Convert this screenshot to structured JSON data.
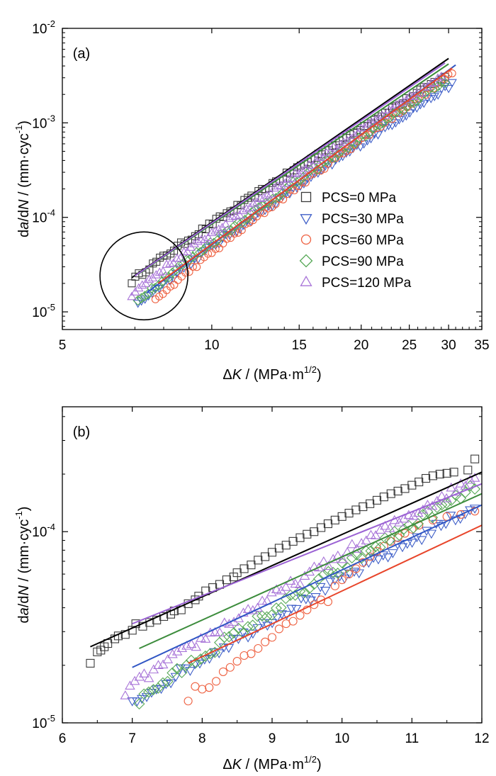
{
  "figure": {
    "panels": [
      "(a)",
      "(b)"
    ]
  },
  "chart_data": [
    {
      "type": "scatter",
      "panel_label": "(a)",
      "xlabel": {
        "prefix": "Δ",
        "var": "K",
        "mid": " / (MPa·m",
        "sup": "1/2",
        "suffix": ")"
      },
      "ylabel": {
        "pre": "d",
        "a": "a",
        "mid": "/d",
        "N": "N",
        "unit": " / (mm·cyc",
        "sup": "-1",
        "suffix": ")"
      },
      "xscale": "log",
      "yscale": "log",
      "xlim": [
        5,
        35
      ],
      "ylim": [
        6.5e-06,
        0.01
      ],
      "xticks": [
        5,
        10,
        15,
        20,
        25,
        30,
        35
      ],
      "xtick_labels": [
        "5",
        "10",
        "15",
        "20",
        "25",
        "30",
        "35"
      ],
      "yticks": [
        1e-05,
        0.0001,
        0.001,
        0.01
      ],
      "ytick_labels": [
        {
          "base": "10",
          "exp": "-5"
        },
        {
          "base": "10",
          "exp": "-4"
        },
        {
          "base": "10",
          "exp": "-3"
        },
        {
          "base": "10",
          "exp": "-2"
        }
      ],
      "legend": {
        "position": "center-right"
      },
      "annotation": {
        "shape": "circle",
        "center": [
          7.3,
          2.4e-05
        ]
      },
      "series": [
        {
          "name": "PCS=0 MPa",
          "marker": "square",
          "color": "#3a3a3a",
          "line_color": "#000000",
          "fit": {
            "x": [
              6.9,
              30.0
            ],
            "y": [
              2.3e-05,
              0.0048
            ]
          },
          "points": {
            "x_start": 6.9,
            "x_end": 29.5,
            "n": 90,
            "y_start": 2.1e-05,
            "y_end": 0.0031
          }
        },
        {
          "name": "PCS=30 MPa",
          "marker": "triangle-down",
          "color": "#3f5fc8",
          "line_color": "#2f55c4",
          "fit": {
            "x": [
              7.4,
              31.0
            ],
            "y": [
              1.6e-05,
              0.0041
            ]
          },
          "points": {
            "x_start": 7.1,
            "x_end": 30.5,
            "n": 90,
            "y_start": 1.2e-05,
            "y_end": 0.0026
          }
        },
        {
          "name": "PCS=60 MPa",
          "marker": "circle",
          "color": "#ee6040",
          "line_color": "#e8452a",
          "fit": {
            "x": [
              7.8,
              30.5
            ],
            "y": [
              2e-05,
              0.0038
            ]
          },
          "points": {
            "x_start": 7.7,
            "x_end": 30.5,
            "n": 80,
            "y_start": 1.3e-05,
            "y_end": 0.0033
          }
        },
        {
          "name": "PCS=90 MPa",
          "marker": "diamond",
          "color": "#56a856",
          "line_color": "#3c8c3c",
          "fit": {
            "x": [
              7.1,
              30.0
            ],
            "y": [
              2.5e-05,
              0.0042
            ]
          },
          "points": {
            "x_start": 7.1,
            "x_end": 29.5,
            "n": 90,
            "y_start": 1.3e-05,
            "y_end": 0.0028
          }
        },
        {
          "name": "PCS=120 MPa",
          "marker": "triangle-up",
          "color": "#a874d8",
          "line_color": "#9b62d4",
          "fit": {
            "x": [
              7.0,
              29.5
            ],
            "y": [
              2.4e-05,
              0.0043
            ]
          },
          "points": {
            "x_start": 6.9,
            "x_end": 29.0,
            "n": 90,
            "y_start": 1.5e-05,
            "y_end": 0.003
          }
        }
      ]
    },
    {
      "type": "scatter",
      "panel_label": "(b)",
      "xlabel": {
        "prefix": "Δ",
        "var": "K",
        "mid": " / (MPa·m",
        "sup": "1/2",
        "suffix": ")"
      },
      "ylabel": {
        "pre": "d",
        "a": "a",
        "mid": "/d",
        "N": "N",
        "unit": " / (mm·cyc",
        "sup": "-1",
        "suffix": ")"
      },
      "xscale": "linear",
      "yscale": "log",
      "xlim": [
        6,
        12
      ],
      "ylim": [
        1e-05,
        0.00045
      ],
      "xticks": [
        6,
        7,
        8,
        9,
        10,
        11,
        12
      ],
      "xtick_labels": [
        "6",
        "7",
        "8",
        "9",
        "10",
        "11",
        "12"
      ],
      "yticks": [
        1e-05,
        0.0001
      ],
      "ytick_labels": [
        {
          "base": "10",
          "exp": "-5"
        },
        {
          "base": "10",
          "exp": "-4"
        }
      ],
      "series": [
        {
          "name": "PCS=0 MPa",
          "marker": "square",
          "color": "#3a3a3a",
          "line_color": "#000000",
          "fit": {
            "x": [
              6.4,
              12.0
            ],
            "y": [
              2.5e-05,
              0.000205
            ]
          },
          "points": [
            [
              6.4,
              2.05e-05
            ],
            [
              6.5,
              2.35e-05
            ],
            [
              6.55,
              2.4e-05
            ],
            [
              6.6,
              2.5e-05
            ],
            [
              6.65,
              2.6e-05
            ],
            [
              6.75,
              2.75e-05
            ],
            [
              6.8,
              2.85e-05
            ],
            [
              6.9,
              2.9e-05
            ],
            [
              7.0,
              3.05e-05
            ],
            [
              7.05,
              3.3e-05
            ],
            [
              7.15,
              3.2e-05
            ],
            [
              7.25,
              3.35e-05
            ],
            [
              7.35,
              3.45e-05
            ],
            [
              7.45,
              3.6e-05
            ],
            [
              7.55,
              3.7e-05
            ],
            [
              7.6,
              3.85e-05
            ],
            [
              7.7,
              3.9e-05
            ],
            [
              7.8,
              4.2e-05
            ],
            [
              7.9,
              4.4e-05
            ],
            [
              7.95,
              4.6e-05
            ],
            [
              8.05,
              4.9e-05
            ],
            [
              8.15,
              5.1e-05
            ],
            [
              8.25,
              5.3e-05
            ],
            [
              8.35,
              5.6e-05
            ],
            [
              8.45,
              5.8e-05
            ],
            [
              8.5,
              6.1e-05
            ],
            [
              8.6,
              6.4e-05
            ],
            [
              8.7,
              6.7e-05
            ],
            [
              8.8,
              7.1e-05
            ],
            [
              8.9,
              7.4e-05
            ],
            [
              9.0,
              7.8e-05
            ],
            [
              9.1,
              8.2e-05
            ],
            [
              9.2,
              8.5e-05
            ],
            [
              9.3,
              8.9e-05
            ],
            [
              9.4,
              9.3e-05
            ],
            [
              9.5,
              9.7e-05
            ],
            [
              9.6,
              0.0001
            ],
            [
              9.7,
              0.000105
            ],
            [
              9.8,
              0.00011
            ],
            [
              9.9,
              0.000115
            ],
            [
              10.0,
              0.00012
            ],
            [
              10.1,
              0.000125
            ],
            [
              10.2,
              0.00013
            ],
            [
              10.3,
              0.000135
            ],
            [
              10.4,
              0.00014
            ],
            [
              10.5,
              0.000146
            ],
            [
              10.6,
              0.000152
            ],
            [
              10.7,
              0.000158
            ],
            [
              10.8,
              0.000163
            ],
            [
              10.9,
              0.000168
            ],
            [
              11.0,
              0.000175
            ],
            [
              11.1,
              0.000182
            ],
            [
              11.2,
              0.00019
            ],
            [
              11.3,
              0.000196
            ],
            [
              11.4,
              0.0002
            ],
            [
              11.5,
              0.000202
            ],
            [
              11.6,
              0.000205
            ],
            [
              11.8,
              0.00021
            ],
            [
              11.9,
              0.00024
            ]
          ]
        },
        {
          "name": "PCS=30 MPa",
          "marker": "triangle-down",
          "color": "#3f5fc8",
          "line_color": "#2f55c4",
          "fit": {
            "x": [
              7.0,
              12.0
            ],
            "y": [
              1.95e-05,
              0.000138
            ]
          },
          "points": {
            "x_start": 7.0,
            "x_end": 11.9,
            "n": 72,
            "y_start": 1.25e-05,
            "y_end": 0.000135
          }
        },
        {
          "name": "PCS=60 MPa",
          "marker": "circle",
          "color": "#ee6040",
          "line_color": "#e8452a",
          "fit": {
            "x": [
              7.8,
              12.0
            ],
            "y": [
              2.05e-05,
              0.000108
            ]
          },
          "points": [
            [
              7.8,
              1.3e-05
            ],
            [
              7.9,
              1.55e-05
            ],
            [
              8.0,
              1.5e-05
            ],
            [
              8.1,
              1.53e-05
            ],
            [
              8.2,
              1.65e-05
            ],
            [
              8.3,
              1.85e-05
            ],
            [
              8.4,
              1.95e-05
            ],
            [
              8.5,
              2.1e-05
            ],
            [
              8.6,
              2.25e-05
            ],
            [
              8.7,
              2.3e-05
            ],
            [
              8.8,
              2.45e-05
            ],
            [
              8.9,
              2.65e-05
            ],
            [
              9.0,
              2.8e-05
            ],
            [
              9.1,
              3.1e-05
            ],
            [
              9.2,
              3.3e-05
            ],
            [
              9.3,
              3.4e-05
            ],
            [
              9.4,
              3.65e-05
            ],
            [
              9.5,
              3.9e-05
            ],
            [
              9.6,
              4.15e-05
            ],
            [
              9.7,
              4.4e-05
            ],
            [
              9.8,
              4.3e-05
            ],
            [
              9.9,
              5.2e-05
            ],
            [
              10.0,
              5.6e-05
            ],
            [
              10.1,
              6e-05
            ],
            [
              10.2,
              6.4e-05
            ],
            [
              10.3,
              6.9e-05
            ],
            [
              10.4,
              7.4e-05
            ],
            [
              10.5,
              7.9e-05
            ],
            [
              10.6,
              8.4e-05
            ],
            [
              10.7,
              8.9e-05
            ],
            [
              10.8,
              9.3e-05
            ],
            [
              10.9,
              9.8e-05
            ],
            [
              11.0,
              0.000103
            ],
            [
              11.1,
              0.000108
            ],
            [
              11.3,
              0.000115
            ],
            [
              11.5,
              0.00012
            ],
            [
              11.7,
              0.000123
            ],
            [
              11.9,
              0.000128
            ]
          ]
        },
        {
          "name": "PCS=90 MPa",
          "marker": "diamond",
          "color": "#56a856",
          "line_color": "#3c8c3c",
          "fit": {
            "x": [
              7.1,
              12.0
            ],
            "y": [
              2.45e-05,
              0.000158
            ]
          },
          "points": {
            "x_start": 7.1,
            "x_end": 11.9,
            "n": 72,
            "y_start": 1.3e-05,
            "y_end": 0.00017
          }
        },
        {
          "name": "PCS=120 MPa",
          "marker": "triangle-up",
          "color": "#a874d8",
          "line_color": "#9b62d4",
          "fit": {
            "x": [
              7.0,
              12.0
            ],
            "y": [
              3.3e-05,
              0.000178
            ]
          },
          "points": {
            "x_start": 6.9,
            "x_end": 11.9,
            "n": 75,
            "y_start": 1.45e-05,
            "y_end": 0.00019
          }
        }
      ]
    }
  ]
}
